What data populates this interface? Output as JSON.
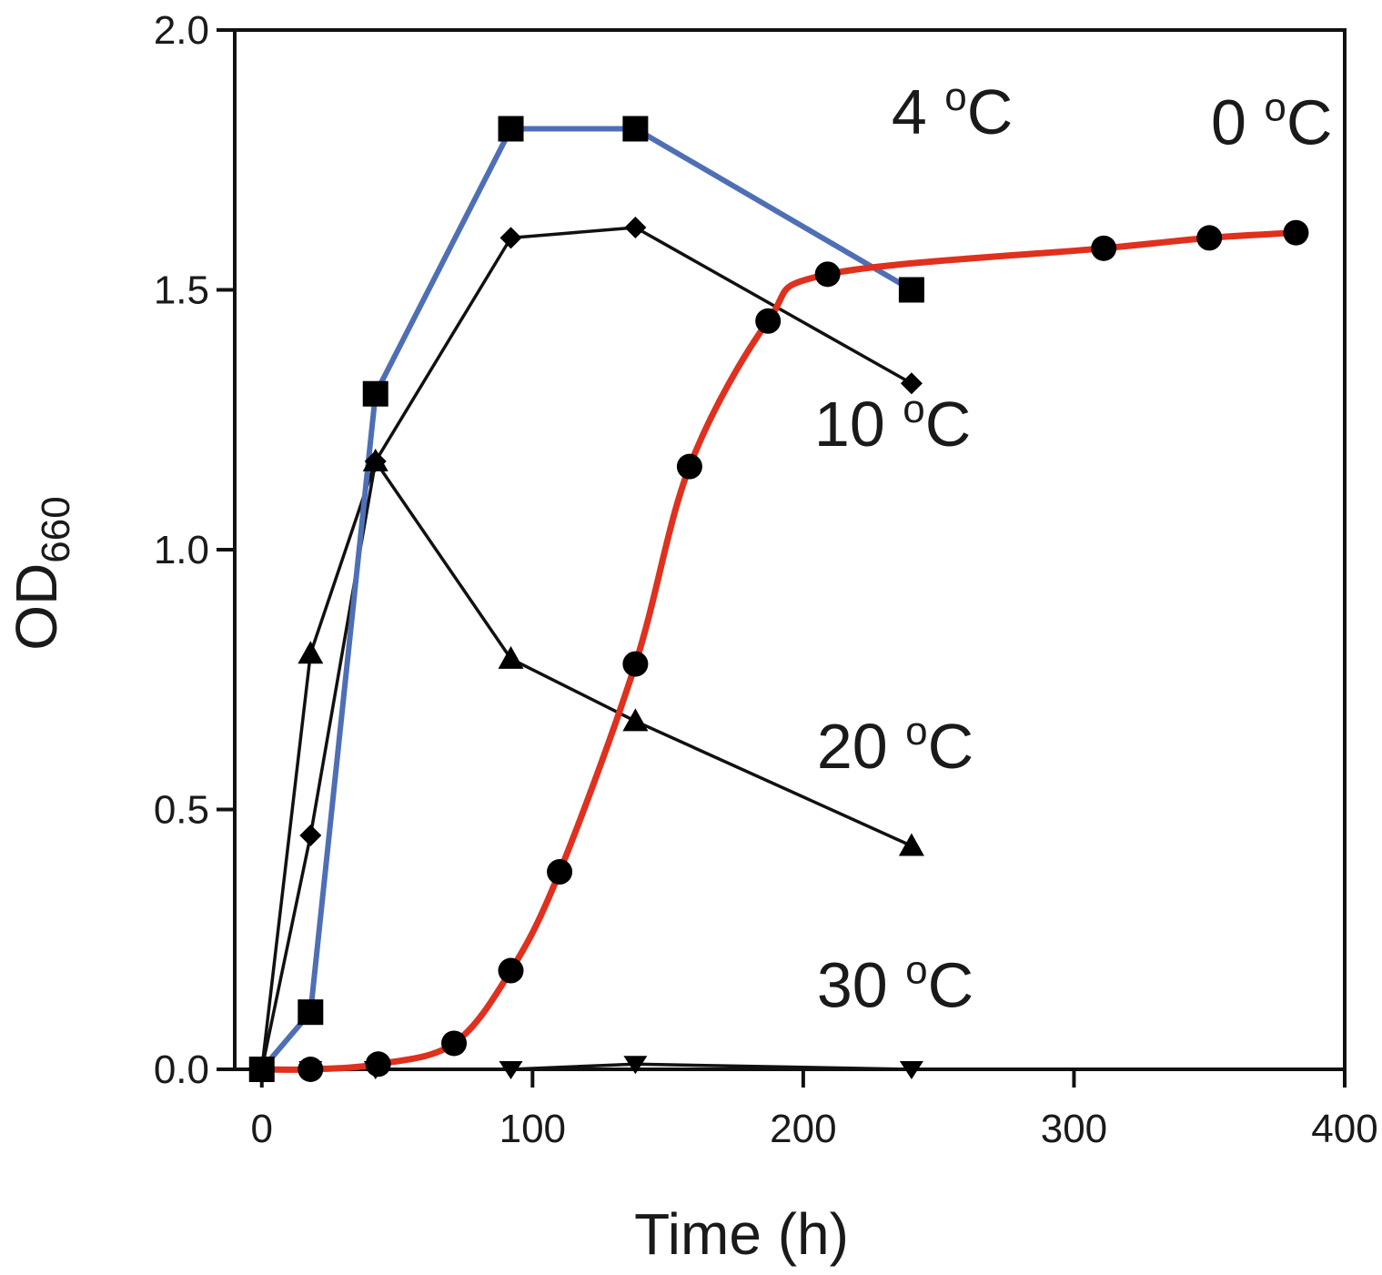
{
  "chart_data": {
    "type": "line",
    "title": "",
    "xlabel": "Time (h)",
    "ylabel_main": "OD",
    "ylabel_sub": "660",
    "xlim": [
      -10,
      400
    ],
    "ylim": [
      0,
      2.0
    ],
    "grid": false,
    "x_ticks": [
      0,
      100,
      200,
      300,
      400
    ],
    "x_tick_labels": [
      "0",
      "100",
      "200",
      "300",
      "400"
    ],
    "y_ticks": [
      0,
      0.5,
      1.0,
      1.5,
      2.0
    ],
    "y_tick_labels": [
      "0.0",
      "0.5",
      "1.0",
      "1.5",
      "2.0"
    ],
    "series": [
      {
        "name": "0 °C",
        "label_main": "0 ",
        "label_deg": "o",
        "label_unit": "C",
        "color": "#e0301e",
        "marker": "circle",
        "smooth": true,
        "x": [
          0,
          18,
          43,
          71,
          92,
          110,
          138,
          158,
          187,
          209,
          311,
          350,
          382
        ],
        "y": [
          0.0,
          0.0,
          0.01,
          0.05,
          0.19,
          0.38,
          0.78,
          1.16,
          1.44,
          1.53,
          1.58,
          1.6,
          1.61
        ]
      },
      {
        "name": "4 °C",
        "label_main": "4 ",
        "label_deg": "o",
        "label_unit": "C",
        "color": "#4f6fb5",
        "marker": "square",
        "smooth": false,
        "x": [
          0,
          18,
          42,
          92,
          138,
          240
        ],
        "y": [
          0.0,
          0.11,
          1.3,
          1.81,
          1.81,
          1.5
        ]
      },
      {
        "name": "10 °C",
        "label_main": "10 ",
        "label_deg": "o",
        "label_unit": "C",
        "color": "#111111",
        "marker": "diamond",
        "smooth": false,
        "x": [
          0,
          18,
          42,
          92,
          138,
          240
        ],
        "y": [
          0.0,
          0.45,
          1.17,
          1.6,
          1.62,
          1.32
        ]
      },
      {
        "name": "20 °C",
        "label_main": "20 ",
        "label_deg": "o",
        "label_unit": "C",
        "color": "#111111",
        "marker": "triangle-up",
        "smooth": false,
        "x": [
          0,
          18,
          42,
          92,
          138,
          240
        ],
        "y": [
          0.0,
          0.8,
          1.17,
          0.79,
          0.67,
          0.43
        ]
      },
      {
        "name": "30 °C",
        "label_main": "30 ",
        "label_deg": "o",
        "label_unit": "C",
        "color": "#111111",
        "marker": "triangle-down",
        "smooth": false,
        "x": [
          0,
          18,
          42,
          92,
          138,
          240
        ],
        "y": [
          0.0,
          0.0,
          0.0,
          0.0,
          0.01,
          0.0
        ]
      }
    ],
    "annotations": [
      {
        "series": 1,
        "x": 255,
        "y": 1.8
      },
      {
        "series": 0,
        "x": 373,
        "y": 1.78
      },
      {
        "series": 2,
        "x": 233,
        "y": 1.2
      },
      {
        "series": 3,
        "x": 234,
        "y": 0.58
      },
      {
        "series": 4,
        "x": 234,
        "y": 0.12
      }
    ]
  }
}
